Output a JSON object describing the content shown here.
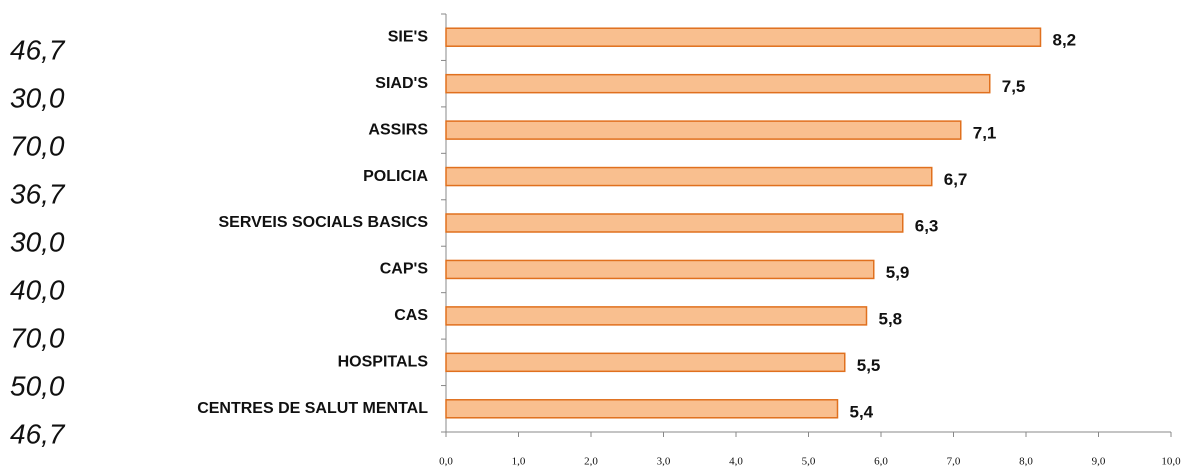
{
  "side_labels": [
    "46,7",
    "30,0",
    "70,0",
    "36,7",
    "30,0",
    "40,0",
    "70,0",
    "50,0",
    "46,7"
  ],
  "chart_data": {
    "type": "barh",
    "categories": [
      "SIE'S",
      "SIAD'S",
      "ASSIRS",
      "POLICIA",
      "SERVEIS SOCIALS BASICS",
      "CAP'S",
      "CAS",
      "HOSPITALS",
      "CENTRES DE SALUT MENTAL"
    ],
    "values": [
      8.2,
      7.5,
      7.1,
      6.7,
      6.3,
      5.9,
      5.8,
      5.5,
      5.4
    ],
    "value_labels": [
      "8,2",
      "7,5",
      "7,1",
      "6,7",
      "6,3",
      "5,9",
      "5,8",
      "5,5",
      "5,4"
    ],
    "color": "#f9bf8f",
    "edge_color": "#e0701e",
    "xlim": [
      0,
      10
    ],
    "xticks": [
      {
        "value": 0,
        "label": "0,0"
      },
      {
        "value": 1,
        "label": "1,0"
      },
      {
        "value": 2,
        "label": "2,0"
      },
      {
        "value": 3,
        "label": "3,0"
      },
      {
        "value": 4,
        "label": "4,0"
      },
      {
        "value": 5,
        "label": "5,0"
      },
      {
        "value": 6,
        "label": "6,0"
      },
      {
        "value": 7,
        "label": "7,0"
      },
      {
        "value": 8,
        "label": "8,0"
      },
      {
        "value": 9,
        "label": "9,0"
      },
      {
        "value": 10,
        "label": "10,0"
      }
    ]
  }
}
